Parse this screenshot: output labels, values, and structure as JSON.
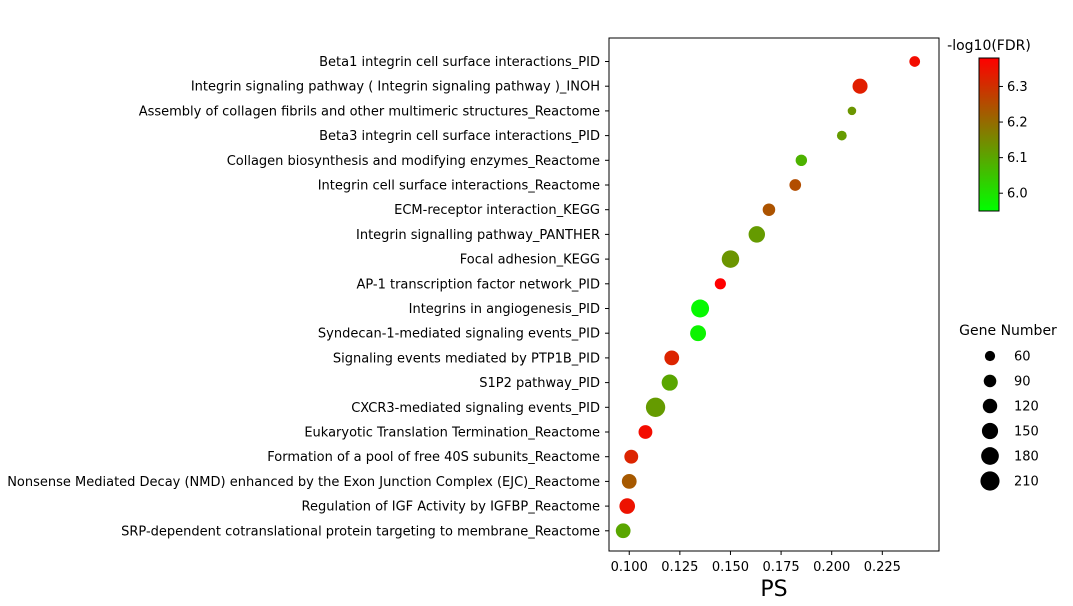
{
  "chart_data": {
    "type": "scatter",
    "xlabel": "PS",
    "ylabel": "",
    "xlim": [
      0.09,
      0.253
    ],
    "xticks": [
      0.1,
      0.125,
      0.15,
      0.175,
      0.2,
      0.225
    ],
    "xtick_labels": [
      "0.100",
      "0.125",
      "0.150",
      "0.175",
      "0.200",
      "0.225"
    ],
    "categories": [
      "Beta1 integrin cell surface interactions_PID",
      "Integrin signaling pathway ( Integrin signaling pathway )_INOH",
      "Assembly of collagen fibrils and other multimeric structures_Reactome",
      "Beta3 integrin cell surface interactions_PID",
      "Collagen biosynthesis and modifying enzymes_Reactome",
      "Integrin cell surface interactions_Reactome",
      "ECM-receptor interaction_KEGG",
      "Integrin signalling pathway_PANTHER",
      "Focal adhesion_KEGG",
      "AP-1 transcription factor network_PID",
      "Integrins in angiogenesis_PID",
      "Syndecan-1-mediated signaling events_PID",
      "Signaling events mediated by PTP1B_PID",
      "S1P2 pathway_PID",
      "CXCR3-mediated signaling events_PID",
      "Eukaryotic Translation Termination_Reactome",
      "Formation of a pool of free 40S subunits_Reactome",
      "Nonsense Mediated Decay (NMD) enhanced by the Exon Junction Complex (EJC)_Reactome",
      "Regulation of IGF Activity by IGFBP_Reactome",
      "SRP-dependent cotranslational protein targeting to membrane_Reactome"
    ],
    "points": [
      {
        "x": 0.241,
        "gene_number": 66,
        "neg_log10_fdr": 6.36
      },
      {
        "x": 0.214,
        "gene_number": 130,
        "neg_log10_fdr": 6.33
      },
      {
        "x": 0.21,
        "gene_number": 42,
        "neg_log10_fdr": 6.13
      },
      {
        "x": 0.205,
        "gene_number": 55,
        "neg_log10_fdr": 6.12
      },
      {
        "x": 0.185,
        "gene_number": 75,
        "neg_log10_fdr": 6.08
      },
      {
        "x": 0.182,
        "gene_number": 78,
        "neg_log10_fdr": 6.25
      },
      {
        "x": 0.169,
        "gene_number": 90,
        "neg_log10_fdr": 6.24
      },
      {
        "x": 0.163,
        "gene_number": 155,
        "neg_log10_fdr": 6.12
      },
      {
        "x": 0.15,
        "gene_number": 175,
        "neg_log10_fdr": 6.13
      },
      {
        "x": 0.145,
        "gene_number": 72,
        "neg_log10_fdr": 6.38
      },
      {
        "x": 0.135,
        "gene_number": 185,
        "neg_log10_fdr": 5.96
      },
      {
        "x": 0.134,
        "gene_number": 145,
        "neg_log10_fdr": 5.97
      },
      {
        "x": 0.121,
        "gene_number": 125,
        "neg_log10_fdr": 6.32
      },
      {
        "x": 0.12,
        "gene_number": 150,
        "neg_log10_fdr": 6.1
      },
      {
        "x": 0.113,
        "gene_number": 215,
        "neg_log10_fdr": 6.12
      },
      {
        "x": 0.108,
        "gene_number": 110,
        "neg_log10_fdr": 6.36
      },
      {
        "x": 0.101,
        "gene_number": 110,
        "neg_log10_fdr": 6.32
      },
      {
        "x": 0.1,
        "gene_number": 125,
        "neg_log10_fdr": 6.23
      },
      {
        "x": 0.099,
        "gene_number": 140,
        "neg_log10_fdr": 6.35
      },
      {
        "x": 0.097,
        "gene_number": 125,
        "neg_log10_fdr": 6.1
      }
    ],
    "colorbar": {
      "title": "-log10(FDR)",
      "range": [
        5.95,
        6.38
      ],
      "ticks": [
        6.0,
        6.1,
        6.2,
        6.3
      ],
      "tick_labels": [
        "6.0",
        "6.1",
        "6.2",
        "6.3"
      ],
      "color_low": "#00ff00",
      "color_mid": "#808000",
      "color_high": "#ff0000"
    },
    "size_legend": {
      "title": "Gene Number",
      "values": [
        60,
        90,
        120,
        150,
        180,
        210
      ],
      "labels": [
        "60",
        "90",
        "120",
        "150",
        "180",
        "210"
      ],
      "placement": "right",
      "marker_color": "#000000"
    },
    "grid": false
  }
}
